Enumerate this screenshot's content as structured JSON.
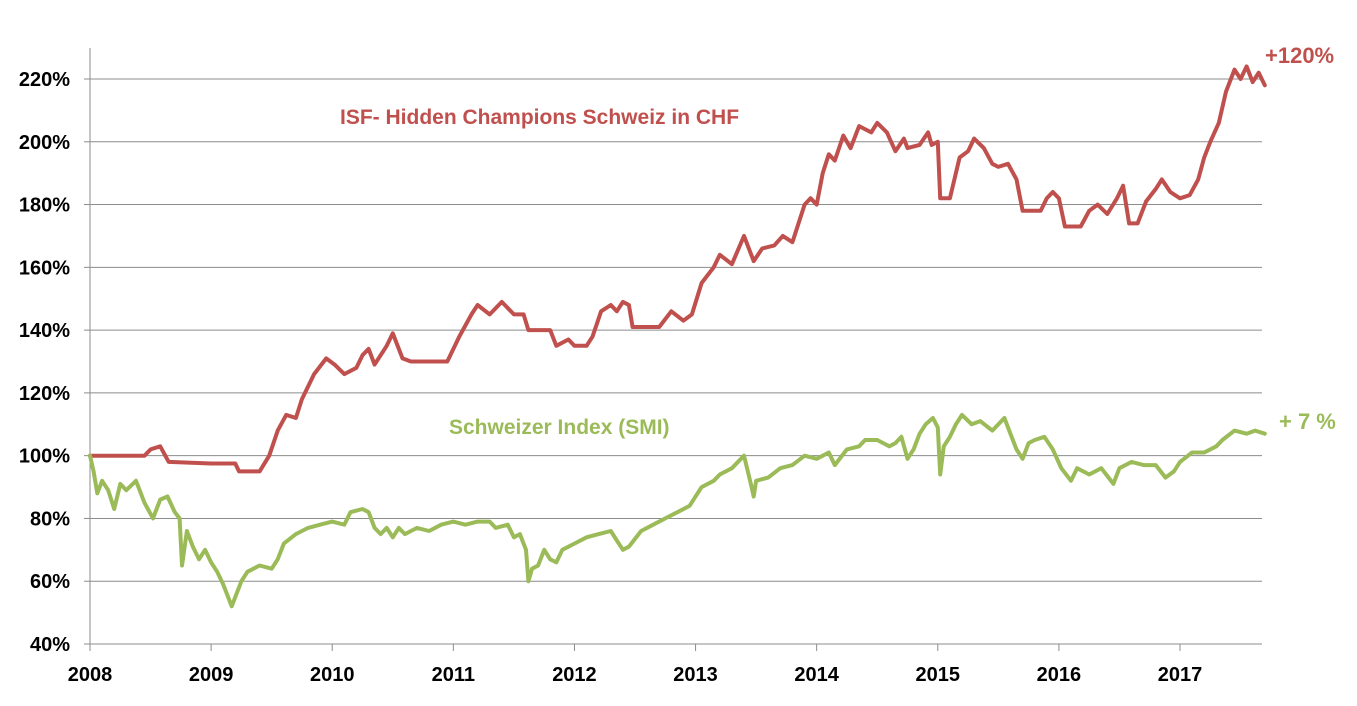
{
  "chart_data": {
    "type": "line",
    "xlim": [
      2008,
      2017.7
    ],
    "ylim": [
      40,
      230
    ],
    "x_ticks": [
      "2008",
      "2009",
      "2010",
      "2011",
      "2012",
      "2013",
      "2014",
      "2015",
      "2016",
      "2017"
    ],
    "y_ticks": [
      "40%",
      "60%",
      "80%",
      "100%",
      "120%",
      "140%",
      "160%",
      "180%",
      "200%",
      "220%"
    ],
    "grid": "horizontal",
    "series": [
      {
        "name": "ISF- Hidden Champions Schweiz in CHF",
        "color": "#c0504d",
        "end_label": "+120%",
        "points": [
          [
            2008.0,
            100
          ],
          [
            2008.45,
            100
          ],
          [
            2008.5,
            102
          ],
          [
            2008.58,
            103
          ],
          [
            2008.65,
            98
          ],
          [
            2009.0,
            97.5
          ],
          [
            2009.2,
            97.5
          ],
          [
            2009.23,
            95
          ],
          [
            2009.4,
            95
          ],
          [
            2009.48,
            100
          ],
          [
            2009.55,
            108
          ],
          [
            2009.62,
            113
          ],
          [
            2009.7,
            112
          ],
          [
            2009.75,
            118
          ],
          [
            2009.85,
            126
          ],
          [
            2009.95,
            131
          ],
          [
            2010.02,
            129
          ],
          [
            2010.1,
            126
          ],
          [
            2010.2,
            128
          ],
          [
            2010.25,
            132
          ],
          [
            2010.3,
            134
          ],
          [
            2010.35,
            129
          ],
          [
            2010.45,
            135
          ],
          [
            2010.5,
            139
          ],
          [
            2010.58,
            131
          ],
          [
            2010.65,
            130
          ],
          [
            2010.75,
            130
          ],
          [
            2010.8,
            130
          ],
          [
            2010.85,
            130
          ],
          [
            2010.95,
            130
          ],
          [
            2011.05,
            138
          ],
          [
            2011.15,
            145
          ],
          [
            2011.2,
            148
          ],
          [
            2011.3,
            145
          ],
          [
            2011.4,
            149
          ],
          [
            2011.5,
            145
          ],
          [
            2011.58,
            145
          ],
          [
            2011.62,
            140
          ],
          [
            2011.8,
            140
          ],
          [
            2011.85,
            135
          ],
          [
            2011.95,
            137
          ],
          [
            2012.0,
            135
          ],
          [
            2012.1,
            135
          ],
          [
            2012.15,
            138
          ],
          [
            2012.22,
            146
          ],
          [
            2012.3,
            148
          ],
          [
            2012.35,
            146
          ],
          [
            2012.4,
            149
          ],
          [
            2012.45,
            148
          ],
          [
            2012.48,
            141
          ],
          [
            2012.7,
            141
          ],
          [
            2012.8,
            146
          ],
          [
            2012.9,
            143
          ],
          [
            2012.97,
            145
          ],
          [
            2013.05,
            155
          ],
          [
            2013.15,
            160
          ],
          [
            2013.2,
            164
          ],
          [
            2013.3,
            161
          ],
          [
            2013.4,
            170
          ],
          [
            2013.48,
            162
          ],
          [
            2013.55,
            166
          ],
          [
            2013.65,
            167
          ],
          [
            2013.72,
            170
          ],
          [
            2013.8,
            168
          ],
          [
            2013.9,
            180
          ],
          [
            2013.95,
            182
          ],
          [
            2014.0,
            180
          ],
          [
            2014.05,
            190
          ],
          [
            2014.1,
            196
          ],
          [
            2014.15,
            194
          ],
          [
            2014.22,
            202
          ],
          [
            2014.28,
            198
          ],
          [
            2014.35,
            205
          ],
          [
            2014.45,
            203
          ],
          [
            2014.5,
            206
          ],
          [
            2014.58,
            203
          ],
          [
            2014.65,
            197
          ],
          [
            2014.72,
            201
          ],
          [
            2014.75,
            198
          ],
          [
            2014.85,
            199
          ],
          [
            2014.92,
            203
          ],
          [
            2014.95,
            199
          ],
          [
            2015.0,
            200
          ],
          [
            2015.02,
            182
          ],
          [
            2015.1,
            182
          ],
          [
            2015.18,
            195
          ],
          [
            2015.25,
            197
          ],
          [
            2015.3,
            201
          ],
          [
            2015.38,
            198
          ],
          [
            2015.45,
            193
          ],
          [
            2015.5,
            192
          ],
          [
            2015.58,
            193
          ],
          [
            2015.65,
            188
          ],
          [
            2015.7,
            178
          ],
          [
            2015.85,
            178
          ],
          [
            2015.9,
            182
          ],
          [
            2015.95,
            184
          ],
          [
            2016.0,
            182
          ],
          [
            2016.05,
            173
          ],
          [
            2016.18,
            173
          ],
          [
            2016.25,
            178
          ],
          [
            2016.32,
            180
          ],
          [
            2016.4,
            177
          ],
          [
            2016.48,
            182
          ],
          [
            2016.53,
            186
          ],
          [
            2016.58,
            174
          ],
          [
            2016.65,
            174
          ],
          [
            2016.72,
            181
          ],
          [
            2016.8,
            185
          ],
          [
            2016.85,
            188
          ],
          [
            2016.92,
            184
          ],
          [
            2017.0,
            182
          ],
          [
            2017.08,
            183
          ],
          [
            2017.15,
            188
          ],
          [
            2017.2,
            195
          ],
          [
            2017.25,
            200
          ],
          [
            2017.32,
            206
          ],
          [
            2017.38,
            216
          ],
          [
            2017.45,
            223
          ],
          [
            2017.5,
            220
          ],
          [
            2017.55,
            224
          ],
          [
            2017.6,
            219
          ],
          [
            2017.65,
            222
          ],
          [
            2017.7,
            218
          ]
        ]
      },
      {
        "name": "Schweizer Index (SMI)",
        "color": "#9bbb59",
        "end_label": "+ 7 %",
        "points": [
          [
            2008.0,
            100
          ],
          [
            2008.03,
            95
          ],
          [
            2008.06,
            88
          ],
          [
            2008.1,
            92
          ],
          [
            2008.15,
            89
          ],
          [
            2008.2,
            83
          ],
          [
            2008.25,
            91
          ],
          [
            2008.3,
            89
          ],
          [
            2008.38,
            92
          ],
          [
            2008.45,
            85
          ],
          [
            2008.52,
            80
          ],
          [
            2008.58,
            86
          ],
          [
            2008.64,
            87
          ],
          [
            2008.7,
            82
          ],
          [
            2008.74,
            80
          ],
          [
            2008.76,
            65
          ],
          [
            2008.8,
            76
          ],
          [
            2008.85,
            71
          ],
          [
            2008.9,
            67
          ],
          [
            2008.95,
            70
          ],
          [
            2009.0,
            66
          ],
          [
            2009.05,
            63
          ],
          [
            2009.1,
            59
          ],
          [
            2009.17,
            52
          ],
          [
            2009.25,
            60
          ],
          [
            2009.3,
            63
          ],
          [
            2009.4,
            65
          ],
          [
            2009.5,
            64
          ],
          [
            2009.55,
            67
          ],
          [
            2009.6,
            72
          ],
          [
            2009.7,
            75
          ],
          [
            2009.8,
            77
          ],
          [
            2009.9,
            78
          ],
          [
            2010.0,
            79
          ],
          [
            2010.1,
            78
          ],
          [
            2010.15,
            82
          ],
          [
            2010.25,
            83
          ],
          [
            2010.3,
            82
          ],
          [
            2010.35,
            77
          ],
          [
            2010.4,
            75
          ],
          [
            2010.45,
            77
          ],
          [
            2010.5,
            74
          ],
          [
            2010.55,
            77
          ],
          [
            2010.6,
            75
          ],
          [
            2010.7,
            77
          ],
          [
            2010.8,
            76
          ],
          [
            2010.9,
            78
          ],
          [
            2011.0,
            79
          ],
          [
            2011.1,
            78
          ],
          [
            2011.2,
            79
          ],
          [
            2011.3,
            79
          ],
          [
            2011.35,
            77
          ],
          [
            2011.45,
            78
          ],
          [
            2011.5,
            74
          ],
          [
            2011.55,
            75
          ],
          [
            2011.6,
            70
          ],
          [
            2011.62,
            60
          ],
          [
            2011.65,
            64
          ],
          [
            2011.7,
            65
          ],
          [
            2011.75,
            70
          ],
          [
            2011.8,
            67
          ],
          [
            2011.85,
            66
          ],
          [
            2011.9,
            70
          ],
          [
            2012.0,
            72
          ],
          [
            2012.1,
            74
          ],
          [
            2012.2,
            75
          ],
          [
            2012.3,
            76
          ],
          [
            2012.35,
            73
          ],
          [
            2012.4,
            70
          ],
          [
            2012.45,
            71
          ],
          [
            2012.55,
            76
          ],
          [
            2012.65,
            78
          ],
          [
            2012.75,
            80
          ],
          [
            2012.85,
            82
          ],
          [
            2012.95,
            84
          ],
          [
            2013.05,
            90
          ],
          [
            2013.15,
            92
          ],
          [
            2013.2,
            94
          ],
          [
            2013.3,
            96
          ],
          [
            2013.4,
            100
          ],
          [
            2013.45,
            92
          ],
          [
            2013.48,
            87
          ],
          [
            2013.5,
            92
          ],
          [
            2013.6,
            93
          ],
          [
            2013.7,
            96
          ],
          [
            2013.8,
            97
          ],
          [
            2013.9,
            100
          ],
          [
            2014.0,
            99
          ],
          [
            2014.1,
            101
          ],
          [
            2014.15,
            97
          ],
          [
            2014.25,
            102
          ],
          [
            2014.35,
            103
          ],
          [
            2014.4,
            105
          ],
          [
            2014.5,
            105
          ],
          [
            2014.55,
            104
          ],
          [
            2014.6,
            103
          ],
          [
            2014.65,
            104
          ],
          [
            2014.7,
            106
          ],
          [
            2014.75,
            99
          ],
          [
            2014.8,
            102
          ],
          [
            2014.85,
            107
          ],
          [
            2014.9,
            110
          ],
          [
            2014.96,
            112
          ],
          [
            2015.0,
            109
          ],
          [
            2015.02,
            94
          ],
          [
            2015.05,
            103
          ],
          [
            2015.1,
            106
          ],
          [
            2015.15,
            110
          ],
          [
            2015.2,
            113
          ],
          [
            2015.28,
            110
          ],
          [
            2015.35,
            111
          ],
          [
            2015.45,
            108
          ],
          [
            2015.55,
            112
          ],
          [
            2015.6,
            107
          ],
          [
            2015.65,
            102
          ],
          [
            2015.7,
            99
          ],
          [
            2015.75,
            104
          ],
          [
            2015.8,
            105
          ],
          [
            2015.88,
            106
          ],
          [
            2015.95,
            102
          ],
          [
            2016.02,
            96
          ],
          [
            2016.1,
            92
          ],
          [
            2016.15,
            96
          ],
          [
            2016.25,
            94
          ],
          [
            2016.35,
            96
          ],
          [
            2016.45,
            91
          ],
          [
            2016.5,
            96
          ],
          [
            2016.6,
            98
          ],
          [
            2016.7,
            97
          ],
          [
            2016.8,
            97
          ],
          [
            2016.88,
            93
          ],
          [
            2016.95,
            95
          ],
          [
            2017.0,
            98
          ],
          [
            2017.1,
            101
          ],
          [
            2017.2,
            101
          ],
          [
            2017.3,
            103
          ],
          [
            2017.35,
            105
          ],
          [
            2017.45,
            108
          ],
          [
            2017.55,
            107
          ],
          [
            2017.62,
            108
          ],
          [
            2017.7,
            107
          ]
        ]
      }
    ]
  }
}
